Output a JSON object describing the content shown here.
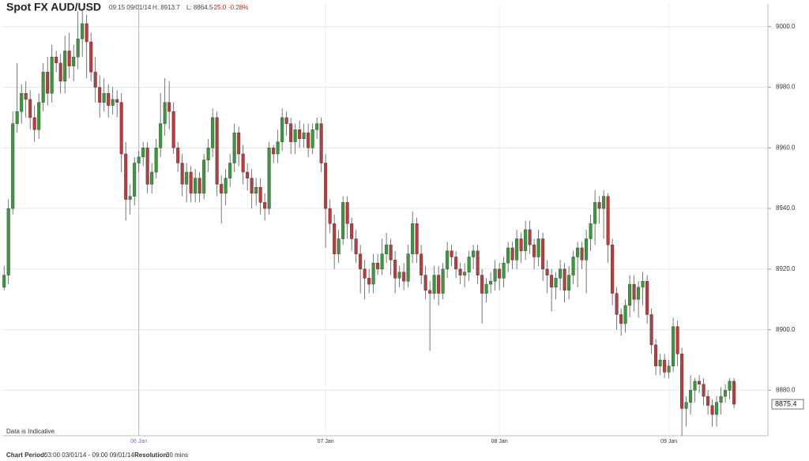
{
  "chart_data": {
    "type": "candlestick",
    "title": "Spot FX AUD/USD",
    "time": "09:15 09/01/14",
    "high_label": "H: 8913.7",
    "low_label": "L: 8864.5",
    "change": "-25.0",
    "change_pct": "-0.28%",
    "note": "Data is Indicative",
    "footer": {
      "period_label": "Chart Period:",
      "period": "03:00 03/01/14 - 09:00 09/01/14",
      "resolution_label": "Resolution:",
      "resolution": "30 mins"
    },
    "up_color": "#3a9a3a",
    "down_color": "#c0393b",
    "grid": true,
    "ylim": [
      8865,
      9007.5
    ],
    "yticks": [
      {
        "value": 8880,
        "label": "8880.0"
      },
      {
        "value": 8900,
        "label": "8900.0"
      },
      {
        "value": 8920,
        "label": "8920.0"
      },
      {
        "value": 8940,
        "label": "8940.0"
      },
      {
        "value": 8960,
        "label": "8960.0"
      },
      {
        "value": 8980,
        "label": "8980.0"
      },
      {
        "value": 9000,
        "label": "9000.0"
      }
    ],
    "xlim": [
      -0.4,
      175.8
    ],
    "xticks": [
      {
        "value": 31,
        "label": "06 Jan"
      },
      {
        "value": 74,
        "label": "07 Jan"
      },
      {
        "value": 114,
        "label": "08 Jan"
      },
      {
        "value": 153,
        "label": "09 Jan"
      }
    ],
    "last_price": 8875.4,
    "open": [
      8914,
      8918,
      8940,
      8968,
      8972,
      8978,
      8976,
      8970,
      8966,
      8975,
      8985,
      8978,
      8990,
      8988,
      8982,
      8992,
      8987,
      8990,
      8996,
      9001,
      8995,
      8985,
      8980,
      8975,
      8978,
      8974,
      8976,
      8975,
      8958,
      8943,
      8944,
      8955,
      8957,
      8960,
      8948,
      8952,
      8960,
      8968,
      8975,
      8972,
      8960,
      8955,
      8948,
      8952,
      8945,
      8950,
      8945,
      8956,
      8960,
      8970,
      8948,
      8945,
      8950,
      8955,
      8965,
      8958,
      8952,
      8950,
      8945,
      8947,
      8942,
      8940,
      8960,
      8958,
      8962,
      8970,
      8968,
      8962,
      8966,
      8963,
      8965,
      8960,
      8966,
      8968,
      8955,
      8940,
      8935,
      8925,
      8930,
      8942,
      8935,
      8930,
      8925,
      8920,
      8917,
      8915,
      8922,
      8920,
      8925,
      8928,
      8923,
      8917,
      8919,
      8916,
      8925,
      8935,
      8925,
      8918,
      8913,
      8912,
      8918,
      8912,
      8920,
      8926,
      8924,
      8920,
      8918,
      8919,
      8924,
      8926,
      8918,
      8912,
      8915,
      8916,
      8920,
      8917,
      8922,
      8927,
      8923,
      8930,
      8926,
      8933,
      8928,
      8924,
      8930,
      8920,
      8918,
      8914,
      8917,
      8920,
      8913,
      8918,
      8924,
      8927,
      8923,
      8930,
      8935,
      8942,
      8940,
      8944,
      8928,
      8912,
      8905,
      8902,
      8908,
      8915,
      8910,
      8914,
      8916,
      8905,
      8895,
      8888,
      8890,
      8886,
      8888,
      8901,
      8892,
      8874,
      8876,
      8880,
      8883,
      8882,
      8878,
      8875,
      8872,
      8876,
      8878,
      8880,
      8883
    ],
    "high": [
      8921,
      8943,
      8972,
      8988,
      8981,
      8982,
      8979,
      8974,
      8978,
      8988,
      8990,
      8994,
      8992,
      8991,
      8997,
      8998,
      8994,
      9005,
      9006,
      9004,
      8998,
      8990,
      8984,
      8983,
      8981,
      8980,
      8979,
      8978,
      8962,
      8948,
      8957,
      8959,
      8962,
      8962,
      8955,
      8963,
      8978,
      8983,
      8982,
      8975,
      8962,
      8958,
      8955,
      8954,
      8953,
      8952,
      8958,
      8963,
      8973,
      8972,
      8951,
      8953,
      8958,
      8968,
      8967,
      8961,
      8955,
      8953,
      8950,
      8950,
      8945,
      8962,
      8961,
      8966,
      8973,
      8972,
      8970,
      8968,
      8969,
      8968,
      8968,
      8968,
      8970,
      8970,
      8958,
      8943,
      8938,
      8933,
      8944,
      8944,
      8937,
      8933,
      8928,
      8923,
      8920,
      8925,
      8925,
      8930,
      8932,
      8930,
      8926,
      8921,
      8922,
      8928,
      8939,
      8937,
      8928,
      8921,
      8916,
      8921,
      8921,
      8922,
      8929,
      8928,
      8926,
      8922,
      8922,
      8926,
      8928,
      8928,
      8920,
      8917,
      8919,
      8923,
      8922,
      8924,
      8929,
      8929,
      8933,
      8932,
      8936,
      8936,
      8930,
      8933,
      8932,
      8923,
      8920,
      8919,
      8923,
      8922,
      8921,
      8926,
      8929,
      8929,
      8933,
      8938,
      8946,
      8944,
      8946,
      8945,
      8930,
      8914,
      8907,
      8910,
      8918,
      8918,
      8916,
      8919,
      8918,
      8907,
      8897,
      8892,
      8892,
      8890,
      8904,
      8903,
      8894,
      8878,
      8885,
      8884,
      8885,
      8884,
      8880,
      8877,
      8878,
      8881,
      8882,
      8884,
      8884
    ],
    "low": [
      8913,
      8915,
      8938,
      8965,
      8968,
      8970,
      8966,
      8962,
      8963,
      8972,
      8974,
      8975,
      8985,
      8978,
      8978,
      8983,
      8982,
      8986,
      8990,
      8983,
      8982,
      8975,
      8970,
      8972,
      8970,
      8971,
      8970,
      8952,
      8936,
      8938,
      8941,
      8952,
      8954,
      8945,
      8945,
      8950,
      8957,
      8964,
      8966,
      8958,
      8952,
      8944,
      8942,
      8942,
      8942,
      8942,
      8943,
      8952,
      8957,
      8944,
      8935,
      8941,
      8947,
      8952,
      8954,
      8948,
      8946,
      8940,
      8941,
      8938,
      8936,
      8938,
      8955,
      8955,
      8959,
      8964,
      8958,
      8958,
      8960,
      8960,
      8957,
      8958,
      8963,
      8952,
      8927,
      8932,
      8920,
      8922,
      8928,
      8930,
      8926,
      8922,
      8912,
      8910,
      8912,
      8912,
      8918,
      8918,
      8922,
      8918,
      8912,
      8914,
      8913,
      8914,
      8922,
      8922,
      8915,
      8910,
      8893,
      8910,
      8908,
      8910,
      8917,
      8921,
      8917,
      8915,
      8914,
      8916,
      8920,
      8915,
      8902,
      8909,
      8912,
      8913,
      8913,
      8914,
      8919,
      8920,
      8920,
      8922,
      8923,
      8925,
      8920,
      8921,
      8916,
      8912,
      8906,
      8910,
      8913,
      8909,
      8910,
      8915,
      8914,
      8920,
      8912,
      8926,
      8928,
      8935,
      8930,
      8922,
      8908,
      8900,
      8898,
      8899,
      8904,
      8906,
      8904,
      8908,
      8902,
      8892,
      8885,
      8885,
      8884,
      8884,
      8886,
      8888,
      8865,
      8868,
      8872,
      8876,
      8879,
      8875,
      8872,
      8868,
      8868,
      8872,
      8876,
      8877,
      8874
    ],
    "close": [
      8918,
      8940,
      8968,
      8972,
      8978,
      8976,
      8970,
      8966,
      8975,
      8985,
      8978,
      8990,
      8988,
      8982,
      8992,
      8987,
      8990,
      8996,
      9001,
      8995,
      8985,
      8980,
      8975,
      8978,
      8974,
      8976,
      8975,
      8958,
      8943,
      8944,
      8955,
      8957,
      8960,
      8948,
      8952,
      8960,
      8968,
      8975,
      8972,
      8960,
      8955,
      8948,
      8952,
      8945,
      8950,
      8945,
      8956,
      8960,
      8970,
      8948,
      8945,
      8950,
      8955,
      8965,
      8958,
      8952,
      8950,
      8945,
      8947,
      8942,
      8940,
      8960,
      8958,
      8962,
      8970,
      8968,
      8962,
      8966,
      8963,
      8965,
      8960,
      8966,
      8968,
      8955,
      8940,
      8935,
      8925,
      8930,
      8942,
      8935,
      8930,
      8925,
      8920,
      8917,
      8915,
      8922,
      8920,
      8925,
      8928,
      8923,
      8917,
      8919,
      8916,
      8925,
      8935,
      8925,
      8918,
      8913,
      8912,
      8918,
      8912,
      8920,
      8926,
      8924,
      8920,
      8918,
      8919,
      8924,
      8926,
      8918,
      8912,
      8915,
      8916,
      8920,
      8917,
      8922,
      8927,
      8923,
      8930,
      8926,
      8933,
      8928,
      8924,
      8930,
      8920,
      8918,
      8914,
      8917,
      8920,
      8913,
      8918,
      8924,
      8927,
      8923,
      8930,
      8935,
      8942,
      8940,
      8944,
      8928,
      8912,
      8905,
      8902,
      8908,
      8915,
      8910,
      8914,
      8916,
      8905,
      8895,
      8888,
      8890,
      8886,
      8888,
      8901,
      8892,
      8874,
      8876,
      8880,
      8883,
      8882,
      8878,
      8875,
      8872,
      8876,
      8878,
      8880,
      8883,
      8875.4
    ]
  }
}
